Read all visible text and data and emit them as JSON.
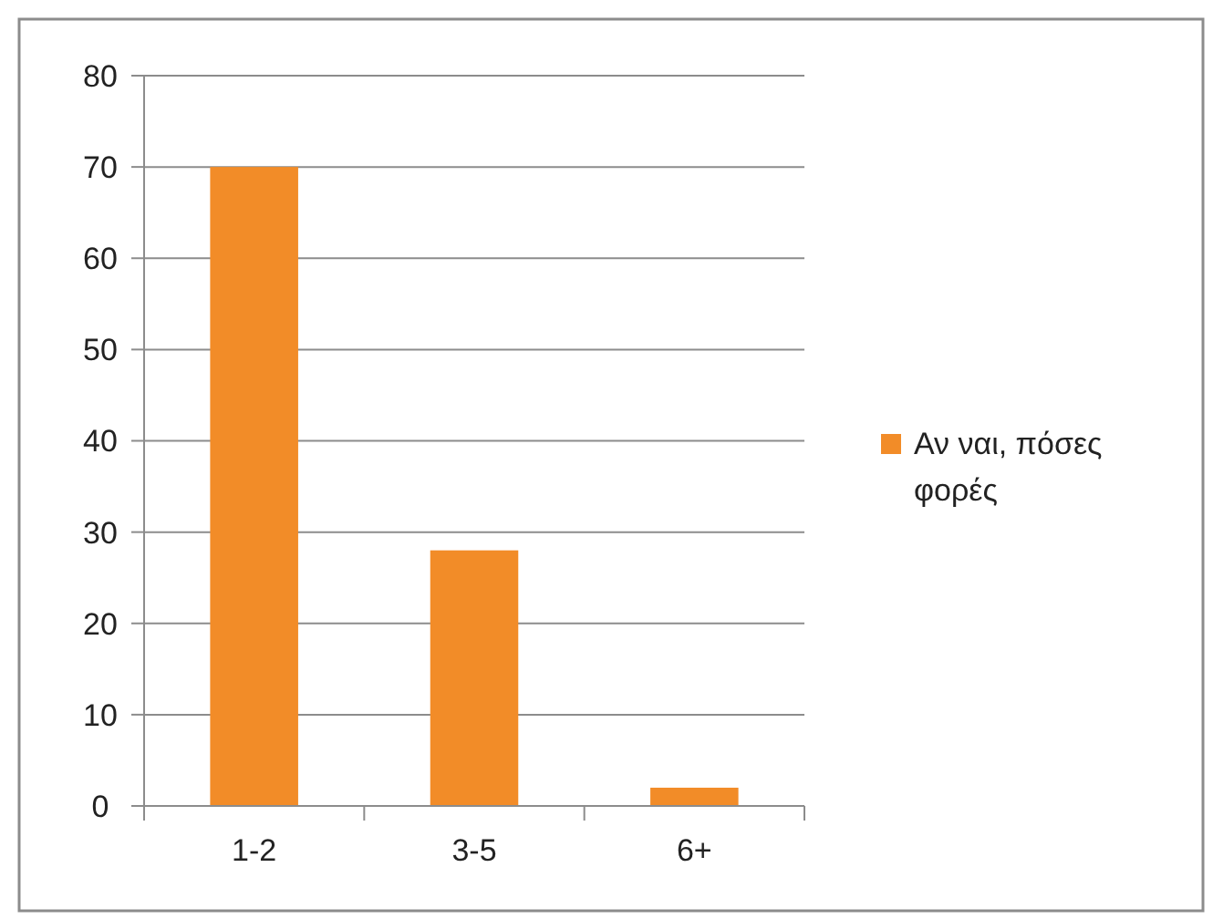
{
  "chart_data": {
    "type": "bar",
    "categories": [
      "1-2",
      "3-5",
      "6+"
    ],
    "series": [
      {
        "name": "Αν ναι, πόσες φορές",
        "color": "#f28c28",
        "values": [
          70,
          28,
          2
        ]
      }
    ],
    "ylim": [
      0,
      80
    ],
    "yticks": [
      0,
      10,
      20,
      30,
      40,
      50,
      60,
      70,
      80
    ],
    "grid": "y",
    "legend": "right"
  }
}
